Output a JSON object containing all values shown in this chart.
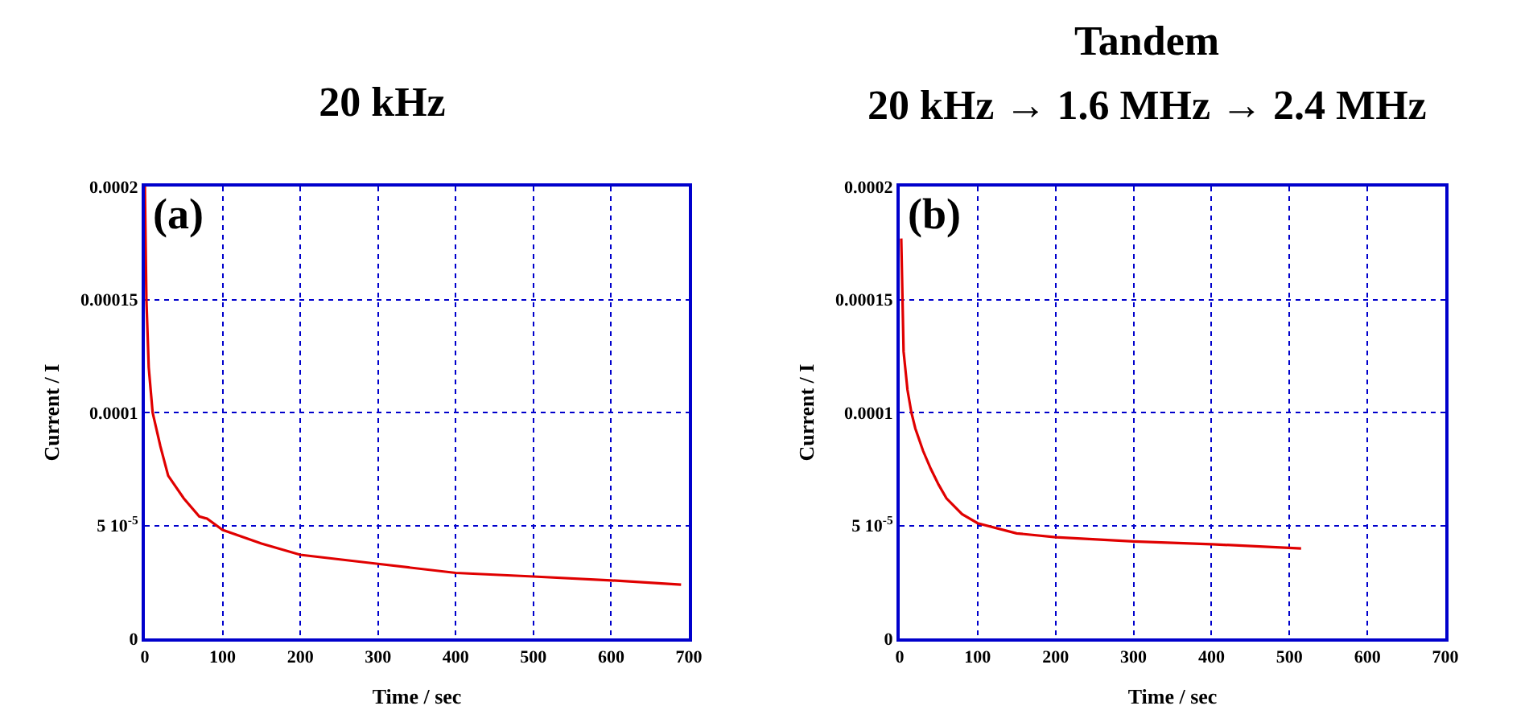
{
  "chart_data": [
    {
      "type": "line",
      "title": "20 kHz",
      "xlabel": "Time / sec",
      "ylabel": "Current / I",
      "annotations": [
        "(a)"
      ],
      "series": [
        {
          "color": "#e00000",
          "x": [
            0,
            2,
            5,
            10,
            20,
            30,
            50,
            70,
            80,
            100,
            150,
            200,
            300,
            400,
            500,
            600,
            690
          ],
          "values": [
            0.0002,
            0.00015,
            0.00012,
            0.0001,
            8.5e-05,
            7.2e-05,
            6.2e-05,
            5.4e-05,
            5.3e-05,
            4.8e-05,
            4.2e-05,
            3.7e-05,
            3.3e-05,
            2.9e-05,
            2.74e-05,
            2.57e-05,
            2.38e-05
          ]
        }
      ],
      "xlim": [
        0,
        700
      ],
      "xticks": [
        0,
        100,
        200,
        300,
        400,
        500,
        600,
        700
      ],
      "ylim": [
        0,
        0.0002
      ],
      "yticks": [
        0,
        {
          "value": 5e-05,
          "label": "5 10$^{-5}$"
        },
        0.0001,
        0.00015,
        0.0002
      ],
      "grid": true,
      "line_style": "solid"
    },
    {
      "type": "line",
      "title": "Tandem",
      "subtitle": "20 kHz → 1.6 MHz → 2.4 MHz",
      "xlabel": "Time / sec",
      "ylabel": "Current / I",
      "annotations": [
        "(b)"
      ],
      "series": [
        {
          "color": "#e00000",
          "x": [
            2,
            5,
            10,
            15,
            20,
            30,
            40,
            50,
            60,
            80,
            100,
            150,
            200,
            300,
            400,
            515
          ],
          "values": [
            0.000177,
            0.000127,
            0.00011,
            0.0001,
            9.3e-05,
            8.3e-05,
            7.5e-05,
            6.8e-05,
            6.2e-05,
            5.5e-05,
            5.1e-05,
            4.65e-05,
            4.48e-05,
            4.29e-05,
            4.17e-05,
            3.98e-05
          ]
        }
      ],
      "xlim": [
        0,
        700
      ],
      "xticks": [
        0,
        100,
        200,
        300,
        400,
        500,
        600,
        700
      ],
      "ylim": [
        0,
        0.0002
      ],
      "yticks": [
        0,
        {
          "value": 5e-05,
          "label": "5 10$^{-5}$"
        },
        0.0001,
        0.00015,
        0.0002
      ],
      "grid": true,
      "line_style": "solid"
    }
  ]
}
